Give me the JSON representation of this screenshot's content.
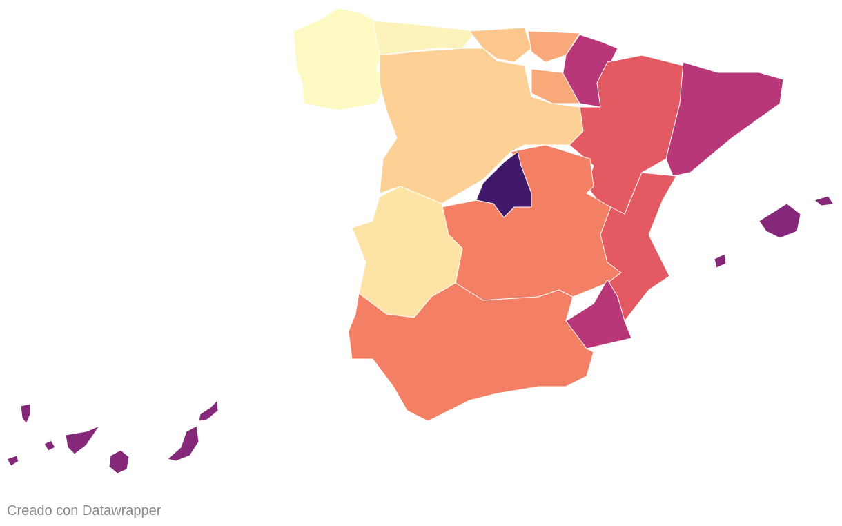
{
  "footer": {
    "credit": "Creado con Datawrapper"
  }
}
